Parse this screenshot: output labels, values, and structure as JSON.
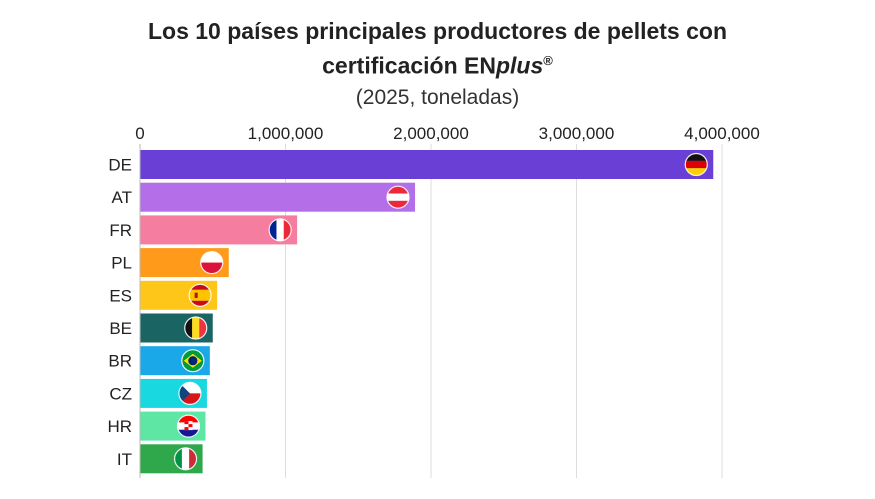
{
  "title_line1": "Los 10 países principales productores de pellets con",
  "title_line2_prefix": "certificación ",
  "title_brand_en": "EN",
  "title_brand_plus": "plus",
  "title_brand_reg": "®",
  "subtitle": "(2025, toneladas)",
  "chart_data": {
    "type": "bar",
    "orientation": "horizontal",
    "x_axis_position": "top",
    "grid": true,
    "xlim": [
      0,
      4000000
    ],
    "x_ticks": [
      0,
      1000000,
      2000000,
      3000000,
      4000000
    ],
    "x_tick_labels": [
      "0",
      "1,000,000",
      "2,000,000",
      "3,000,000",
      "4,000,000"
    ],
    "categories": [
      "DE",
      "AT",
      "FR",
      "PL",
      "ES",
      "BE",
      "BR",
      "CZ",
      "HR",
      "IT"
    ],
    "values": [
      3940000,
      1890000,
      1080000,
      610000,
      530000,
      500000,
      480000,
      460000,
      450000,
      430000
    ],
    "colors": [
      "#6a3fd6",
      "#b36ee8",
      "#f57ea0",
      "#ff9a1a",
      "#ffc61a",
      "#1a6464",
      "#1aa8e8",
      "#1ad8e0",
      "#5ee6a4",
      "#2ea84a"
    ],
    "flag_icons": [
      "germany-flag-icon",
      "austria-flag-icon",
      "france-flag-icon",
      "poland-flag-icon",
      "spain-flag-icon",
      "belgium-flag-icon",
      "brazil-flag-icon",
      "czechia-flag-icon",
      "croatia-flag-icon",
      "italy-flag-icon"
    ]
  }
}
